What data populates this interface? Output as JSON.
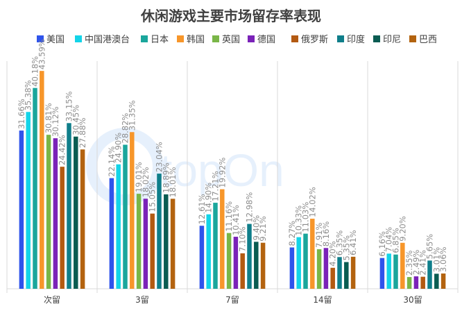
{
  "chart_data": {
    "type": "bar",
    "title": "休闲游戏主要市场留存率表现",
    "categories": [
      "次留",
      "3留",
      "7留",
      "14留",
      "30留"
    ],
    "series": [
      {
        "name": "美国",
        "color": "#2f54eb",
        "values": [
          31.66,
          22.14,
          12.61,
          8.27,
          6.16
        ],
        "labels": [
          "31.66%",
          "22.14%",
          "12.61%",
          "8.27%",
          "6.16%"
        ]
      },
      {
        "name": "中国港澳台",
        "color": "#13d4e8",
        "values": [
          35.38,
          24.9,
          14.9,
          10.33,
          7.04
        ],
        "labels": [
          "35.38%",
          "24.90%",
          "14.90%",
          "10.33%",
          "7.04%"
        ]
      },
      {
        "name": "日本",
        "color": "#1aa69c",
        "values": [
          40.18,
          28.82,
          17.21,
          11.03,
          6.85
        ],
        "labels": [
          "40.18%",
          "28.82%",
          "17.21%",
          "11.03%",
          "6.85%"
        ]
      },
      {
        "name": "韩国",
        "color": "#f7962a",
        "values": [
          43.59,
          31.35,
          19.92,
          14.02,
          9.2
        ],
        "labels": [
          "43.59%",
          "31.35%",
          "19.92%",
          "14.02%",
          "9.20%"
        ]
      },
      {
        "name": "英国",
        "color": "#7ab648",
        "values": [
          30.81,
          19.01,
          11.16,
          7.91,
          2.35
        ],
        "labels": [
          "30.81%",
          "19.01%",
          "11.16%",
          "7.91%",
          "2.35%"
        ]
      },
      {
        "name": "德国",
        "color": "#7a22b8",
        "values": [
          30.12,
          18.02,
          10.41,
          8.16,
          2.49
        ],
        "labels": [
          "30.12%",
          "18.02%",
          "10.41%",
          "8.16%",
          "2.49%"
        ]
      },
      {
        "name": "俄罗斯",
        "color": "#b35a12",
        "values": [
          24.42,
          15.05,
          7.1,
          4.2,
          2.41
        ],
        "labels": [
          "24.42%",
          "15.05%",
          "7.10%",
          "4.20%",
          "2.41%"
        ]
      },
      {
        "name": "印度",
        "color": "#0f7e8a",
        "values": [
          33.15,
          23.04,
          12.98,
          6.35,
          5.65
        ],
        "labels": [
          "33.15%",
          "23.04%",
          "12.98%",
          "6.35%",
          "5.65%"
        ]
      },
      {
        "name": "印尼",
        "color": "#0a5c52",
        "values": [
          30.45,
          18.89,
          9.4,
          5.35,
          3.01
        ],
        "labels": [
          "30.45%",
          "18.89%",
          "9.40%",
          "5.35%",
          "3.01%"
        ]
      },
      {
        "name": "巴西",
        "color": "#b3630f",
        "values": [
          27.88,
          18.01,
          9.21,
          6.41,
          3.06
        ],
        "labels": [
          "27.88%",
          "18.01%",
          "9.21%",
          "6.41%",
          "3.06%"
        ]
      }
    ],
    "xlabel": "",
    "ylabel": "",
    "ylim": [
      0,
      50
    ],
    "grid": false,
    "legend_position": "top",
    "watermark": "topOn",
    "axis_color": "#d9d9d9",
    "label_color": "#8c8c8c"
  }
}
